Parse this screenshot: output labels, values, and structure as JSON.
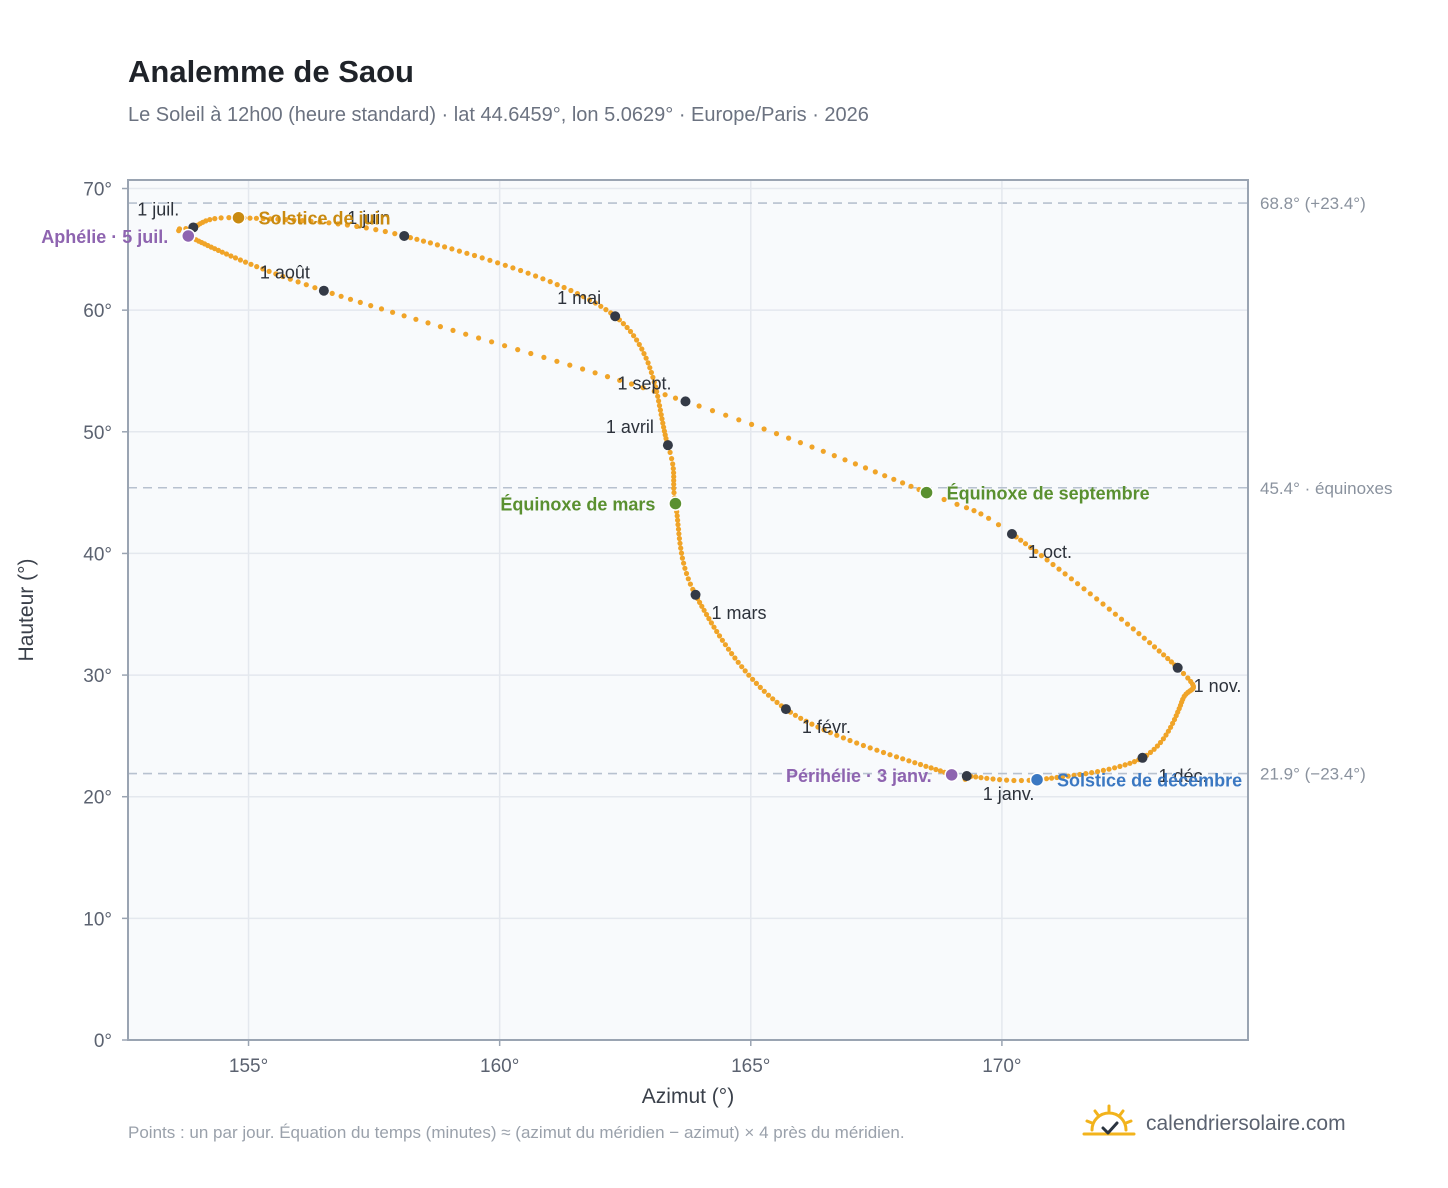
{
  "title": "Analemme de Saou",
  "subtitle": "Le Soleil à 12h00 (heure standard) · lat 44.6459°, lon 5.0629° · Europe/Paris · 2026",
  "footnote": "Points : un par jour. Équation du temps (minutes) ≈ (azimut du méridien − azimut) × 4 près du méridien.",
  "brand": {
    "name": "calendriersolaire.com",
    "icon": "sun-check-icon"
  },
  "colors": {
    "curve": "#f0a428",
    "month_marker": "#343a46",
    "solstice_june": "#c98a10",
    "solstice_december": "#3b78c2",
    "equinox": "#5a9030",
    "aphelion_perihelion": "#8e64b0",
    "refline": "#b7c1cf",
    "plot_bg": "#f8fafc",
    "grid": "#e4e8ee",
    "frame": "#9aa4b2"
  },
  "chart_data": {
    "type": "scatter",
    "xlabel": "Azimut (°)",
    "ylabel": "Hauteur (°)",
    "xlim": [
      152.6,
      174.9
    ],
    "ylim": [
      0,
      70.7
    ],
    "x_ticks": [
      "155°",
      "160°",
      "165°",
      "170°"
    ],
    "x_tick_values": [
      155,
      160,
      165,
      170
    ],
    "y_ticks": [
      "0°",
      "10°",
      "20°",
      "30°",
      "40°",
      "50°",
      "60°",
      "70°"
    ],
    "y_tick_values": [
      0,
      10,
      20,
      30,
      40,
      50,
      60,
      70
    ],
    "grid": true,
    "series": [
      {
        "points": "daily",
        "anchors": [
          {
            "doy": 1,
            "x": 169.3,
            "y": 21.7
          },
          {
            "doy": 3,
            "x": 169.0,
            "y": 21.8
          },
          {
            "doy": 32,
            "x": 165.7,
            "y": 27.2
          },
          {
            "doy": 60,
            "x": 163.9,
            "y": 36.6
          },
          {
            "doy": 79,
            "x": 163.5,
            "y": 44.1
          },
          {
            "doy": 91,
            "x": 163.35,
            "y": 48.9
          },
          {
            "doy": 121,
            "x": 162.3,
            "y": 59.5
          },
          {
            "doy": 152,
            "x": 158.1,
            "y": 66.1
          },
          {
            "doy": 172,
            "x": 154.8,
            "y": 67.6
          },
          {
            "doy": 182,
            "x": 153.9,
            "y": 66.8
          },
          {
            "doy": 186,
            "x": 153.8,
            "y": 66.1
          },
          {
            "doy": 213,
            "x": 156.5,
            "y": 61.6
          },
          {
            "doy": 244,
            "x": 163.7,
            "y": 52.5
          },
          {
            "doy": 266,
            "x": 168.5,
            "y": 45.0
          },
          {
            "doy": 274,
            "x": 170.2,
            "y": 41.6
          },
          {
            "doy": 305,
            "x": 173.5,
            "y": 30.6
          },
          {
            "doy": 318,
            "x": 173.6,
            "y": 28.0
          },
          {
            "doy": 335,
            "x": 172.8,
            "y": 23.2
          },
          {
            "doy": 355,
            "x": 170.7,
            "y": 21.4
          },
          {
            "doy": 366,
            "x": 169.3,
            "y": 21.7
          }
        ]
      }
    ],
    "month_markers": [
      {
        "label": "1 janv.",
        "x": 169.3,
        "y": 21.7,
        "pos": "below-right"
      },
      {
        "label": "1 févr.",
        "x": 165.7,
        "y": 27.2,
        "pos": "below-right"
      },
      {
        "label": "1 mars",
        "x": 163.9,
        "y": 36.6,
        "pos": "below-right"
      },
      {
        "label": "1 avril",
        "x": 163.35,
        "y": 48.9,
        "pos": "above-left"
      },
      {
        "label": "1 mai",
        "x": 162.3,
        "y": 59.5,
        "pos": "above-left"
      },
      {
        "label": "1 juin",
        "x": 158.1,
        "y": 66.1,
        "pos": "above-left"
      },
      {
        "label": "1 juil.",
        "x": 153.9,
        "y": 66.8,
        "pos": "above-left"
      },
      {
        "label": "1 août",
        "x": 156.5,
        "y": 61.6,
        "pos": "above-left"
      },
      {
        "label": "1 sept.",
        "x": 163.7,
        "y": 52.5,
        "pos": "above-left"
      },
      {
        "label": "1 oct.",
        "x": 170.2,
        "y": 41.6,
        "pos": "below-right"
      },
      {
        "label": "1 nov.",
        "x": 173.5,
        "y": 30.6,
        "pos": "below-right"
      },
      {
        "label": "1 déc.",
        "x": 172.8,
        "y": 23.2,
        "pos": "below-right"
      }
    ],
    "events": [
      {
        "label": "Solstice de juin",
        "x": 154.8,
        "y": 67.6,
        "color_key": "solstice_june",
        "pos": "right"
      },
      {
        "label": "Aphélie · 5 juil.",
        "x": 153.8,
        "y": 66.1,
        "color_key": "aphelion_perihelion",
        "pos": "left"
      },
      {
        "label": "Équinoxe de mars",
        "x": 163.5,
        "y": 44.1,
        "color_key": "equinox",
        "pos": "left"
      },
      {
        "label": "Équinoxe de septembre",
        "x": 168.5,
        "y": 45.0,
        "color_key": "equinox",
        "pos": "right"
      },
      {
        "label": "Périhélie · 3 janv.",
        "x": 169.0,
        "y": 21.8,
        "color_key": "aphelion_perihelion",
        "pos": "left"
      },
      {
        "label": "Solstice de décembre",
        "x": 170.7,
        "y": 21.4,
        "color_key": "solstice_december",
        "pos": "right"
      }
    ],
    "reference_lines": [
      {
        "y": 68.8,
        "label": "68.8° (+23.4°)"
      },
      {
        "y": 45.4,
        "label": "45.4° · équinoxes"
      },
      {
        "y": 21.9,
        "label": "21.9° (−23.4°)"
      }
    ]
  }
}
